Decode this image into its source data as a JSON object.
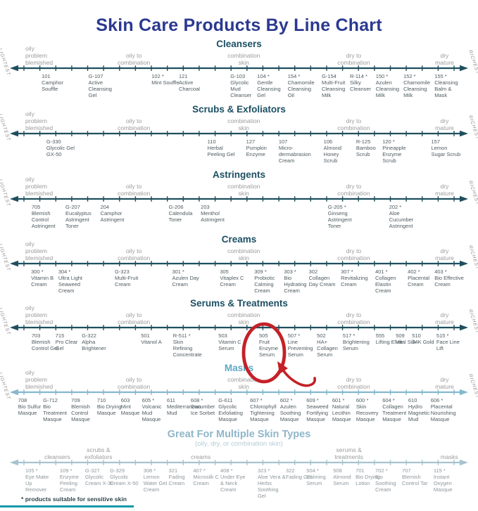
{
  "title": "Skin Care Products By Line Chart",
  "footnote": "* products suitable for sensitive skin",
  "axis": {
    "left": "LIGHTEST",
    "right": "RICHEST"
  },
  "skin_type_labels": [
    "oily\nproblem\nblemished",
    "oily to\ncombination",
    "combination\nskin",
    "dry to\ncombination",
    "dry\nmature"
  ],
  "annotation": {
    "highlighted_product": "505 Fruit Enzyme Serum"
  },
  "colors": {
    "title": "#2b3990",
    "section_title_dark": "#1c4f63",
    "section_title_light": "#5fa8c4",
    "section_title_muted": "#8fb6c9",
    "subtitle_muted": "#b3ccd7",
    "line_dark": "#1e4f5e",
    "line_light": "#85b8cd",
    "line_muted": "#a6c3cf",
    "label_gray": "#9b9b9b",
    "product_text": "#4e5b61",
    "product_text_muted": "#8d979d",
    "annotation_red": "#c42127",
    "footnote_text": "#31454e",
    "footnote_rule": "#0d99a9"
  },
  "chart_data": {
    "type": "scatter",
    "title": "Skin Care Products By Line Chart",
    "x_axis": {
      "left_end": "LIGHTEST",
      "right_end": "RICHEST",
      "categories": [
        "oily problem blemished",
        "oily to combination",
        "combination skin",
        "dry to combination",
        "dry mature"
      ],
      "range": [
        0,
        100
      ]
    },
    "lines": [
      {
        "label": "Cleansers",
        "style": "dark",
        "products": [
          {
            "code": "101",
            "star": false,
            "name": "Camphor Souffle",
            "x": 8.7
          },
          {
            "code": "G-107",
            "star": false,
            "name": "Active Cleansing Gel",
            "x": 18.5
          },
          {
            "code": "102",
            "star": true,
            "name": "Mint Souffle",
            "x": 31.7
          },
          {
            "code": "121",
            "star": false,
            "name": "Active Charcoal",
            "x": 37.4
          },
          {
            "code": "G-103",
            "star": false,
            "name": "Glycolic Mud Cleanser",
            "x": 48.2
          },
          {
            "code": "104",
            "star": true,
            "name": "Gentle Cleansing Gel",
            "x": 53.8
          },
          {
            "code": "154",
            "star": true,
            "name": "Chamomile Cleansing Oil",
            "x": 60.2
          },
          {
            "code": "G-154",
            "star": false,
            "name": "Multi-Fruit Cleansing Milk",
            "x": 67.3
          },
          {
            "code": "R-114",
            "star": true,
            "name": "Silky Cleanser",
            "x": 73.2
          },
          {
            "code": "150",
            "star": true,
            "name": "Azulen Cleansing Milk",
            "x": 78.6
          },
          {
            "code": "152",
            "star": true,
            "name": "Chamomile Cleansing Milk",
            "x": 84.4
          },
          {
            "code": "155",
            "star": true,
            "name": "Cleansing Balm & Mask",
            "x": 90.9
          }
        ]
      },
      {
        "label": "Scrubs & Exfoliators",
        "style": "dark",
        "products": [
          {
            "code": "G-330",
            "star": false,
            "name": "Glycolic Gel GX-50",
            "x": 9.7
          },
          {
            "code": "110",
            "star": false,
            "name": "Herbal Peeling Gel",
            "x": 43.4
          },
          {
            "code": "127",
            "star": false,
            "name": "Pumpkin Enzyme",
            "x": 51.5
          },
          {
            "code": "107",
            "star": false,
            "name": "Micro-dermabrasion Cream",
            "x": 58.3
          },
          {
            "code": "106",
            "star": false,
            "name": "Almond Honey Scrub",
            "x": 67.7
          },
          {
            "code": "R-125",
            "star": false,
            "name": "Bamboo Scrub",
            "x": 74.5
          },
          {
            "code": "120",
            "star": true,
            "name": "Pineapple Enzyme Scrub",
            "x": 80.0
          },
          {
            "code": "157",
            "star": false,
            "name": "Lemon Sugar Scrub",
            "x": 90.2
          }
        ]
      },
      {
        "label": "Astringents",
        "style": "dark",
        "products": [
          {
            "code": "705",
            "star": false,
            "name": "Blemish Control Astringent",
            "x": 6.6
          },
          {
            "code": "G-207",
            "star": false,
            "name": "Eucalyptus Astringent Toner",
            "x": 13.7
          },
          {
            "code": "204",
            "star": false,
            "name": "Camphor Astringent",
            "x": 21.0
          },
          {
            "code": "G-206",
            "star": false,
            "name": "Calendula Toner",
            "x": 35.3
          },
          {
            "code": "203",
            "star": false,
            "name": "Menthol Astringent",
            "x": 42.0
          },
          {
            "code": "G-205",
            "star": true,
            "name": "Ginseng Astringent Toner",
            "x": 68.6
          },
          {
            "code": "202",
            "star": true,
            "name": "Aloe Cucumber Astringent",
            "x": 81.4
          }
        ]
      },
      {
        "label": "Creams",
        "style": "dark",
        "products": [
          {
            "code": "300",
            "star": true,
            "name": "Vitamin B Cream",
            "x": 6.5
          },
          {
            "code": "304",
            "star": true,
            "name": "Ultra Light Seaweed Cream",
            "x": 12.2
          },
          {
            "code": "G-323",
            "star": false,
            "name": "Multi-Fruit Cream",
            "x": 24.0
          },
          {
            "code": "301",
            "star": true,
            "name": "Azulen Day Cream",
            "x": 36.0
          },
          {
            "code": "305",
            "star": false,
            "name": "Vitaplex C Cream",
            "x": 46.0
          },
          {
            "code": "309",
            "star": true,
            "name": "Probiotic Calming Cream",
            "x": 53.2
          },
          {
            "code": "303",
            "star": true,
            "name": "Bio Hydrating Cream",
            "x": 59.4
          },
          {
            "code": "302",
            "star": false,
            "name": "Collagen Day Cream",
            "x": 64.6
          },
          {
            "code": "307",
            "star": true,
            "name": "Revitalizing Cream",
            "x": 71.3
          },
          {
            "code": "401",
            "star": true,
            "name": "Collagen Elastin Cream",
            "x": 78.5
          },
          {
            "code": "402",
            "star": true,
            "name": "Placental Cream",
            "x": 85.3
          },
          {
            "code": "403",
            "star": true,
            "name": "Bio Effective Cream",
            "x": 90.9
          }
        ]
      },
      {
        "label": "Serums & Treatments",
        "style": "dark",
        "products": [
          {
            "code": "703",
            "star": false,
            "name": "Blemish Control Gel",
            "x": 6.6
          },
          {
            "code": "715",
            "star": false,
            "name": "Pro Clear Gel",
            "x": 11.6
          },
          {
            "code": "G-322",
            "star": false,
            "name": "Alpha Brightener",
            "x": 17.1
          },
          {
            "code": "501",
            "star": false,
            "name": "Vitanol A",
            "x": 29.5
          },
          {
            "code": "R-511",
            "star": true,
            "name": "Skin Refining Concentrate",
            "x": 36.2
          },
          {
            "code": "503",
            "star": false,
            "name": "Vitamin C Serum",
            "x": 45.7
          },
          {
            "code": "505",
            "star": false,
            "name": "Fruit Enzyme Serum",
            "x": 54.2
          },
          {
            "code": "507",
            "star": true,
            "name": "Line Preventing Serum",
            "x": 60.2
          },
          {
            "code": "502",
            "star": false,
            "name": "HA+ Collagen Serum",
            "x": 66.3
          },
          {
            "code": "517",
            "star": true,
            "name": "Brightening Serum",
            "x": 71.7
          },
          {
            "code": "555",
            "star": false,
            "name": "Lifting Elixir",
            "x": 78.6
          },
          {
            "code": "509",
            "star": false,
            "name": "Vital Silk",
            "x": 82.8
          },
          {
            "code": "510",
            "star": false,
            "name": "24K Gold",
            "x": 86.2
          },
          {
            "code": "515",
            "star": true,
            "name": "Face Line Lift",
            "x": 91.3
          }
        ]
      },
      {
        "label": "Masks",
        "style": "light",
        "products": [
          {
            "code": "708",
            "star": false,
            "name": "Bio Sulfur Masque",
            "x": 3.8
          },
          {
            "code": "G-712",
            "star": false,
            "name": "Bio Treatment Masque",
            "x": 9.0
          },
          {
            "code": "709",
            "star": false,
            "name": "Blemish Control Masque",
            "x": 14.9
          },
          {
            "code": "710",
            "star": false,
            "name": "Bio Drying Masque",
            "x": 20.3
          },
          {
            "code": "603",
            "star": false,
            "name": "Mint Masque",
            "x": 25.3
          },
          {
            "code": "605",
            "star": true,
            "name": "Volcanic Mud Masque",
            "x": 29.7
          },
          {
            "code": "611",
            "star": false,
            "name": "Mediterranean Mud",
            "x": 34.9
          },
          {
            "code": "608",
            "star": true,
            "name": "Cucumber Ice Sorbet",
            "x": 39.9
          },
          {
            "code": "G-611",
            "star": false,
            "name": "Glycolic Exfoliating Masque",
            "x": 45.7
          },
          {
            "code": "607",
            "star": true,
            "name": "Chlorophyll Tightening Masque",
            "x": 52.3
          },
          {
            "code": "602",
            "star": true,
            "name": "Azulen Soothing Masque",
            "x": 58.6
          },
          {
            "code": "609",
            "star": true,
            "name": "Seaweed Fortifying Masque",
            "x": 64.1
          },
          {
            "code": "601",
            "star": true,
            "name": "Natural Lecithin Masque",
            "x": 69.5
          },
          {
            "code": "600",
            "star": true,
            "name": "Skin Recovery Masque",
            "x": 74.5
          },
          {
            "code": "604",
            "star": true,
            "name": "Collagen Treatment Masque",
            "x": 80.0
          },
          {
            "code": "610",
            "star": false,
            "name": "Hydro Magnetic Mud",
            "x": 85.4
          },
          {
            "code": "606",
            "star": true,
            "name": "Placental Nourishing Masque",
            "x": 90.1
          }
        ]
      },
      {
        "label": "Great For Multiple Skin Types",
        "style": "muted",
        "subtitle": "(oily, dry, or combination skin)",
        "category_labels": [
          {
            "text": "cleansers",
            "x": 12
          },
          {
            "text": "scrubs &\nexfoliators",
            "x": 20.6
          },
          {
            "text": "creams",
            "x": 42
          },
          {
            "text": "serums &\ntreatments",
            "x": 73
          },
          {
            "text": "masks",
            "x": 94
          }
        ],
        "products": [
          {
            "code": "105",
            "star": true,
            "name": "Eye Make Up Remover",
            "x": 5.3
          },
          {
            "code": "109",
            "star": true,
            "name": "Enzyme Peeling Cream",
            "x": 12.5
          },
          {
            "code": "G-327",
            "star": false,
            "name": "Glycolic Cream X-30",
            "x": 17.8
          },
          {
            "code": "G-329",
            "star": false,
            "name": "Glycolic Cream X-50",
            "x": 23.0
          },
          {
            "code": "308",
            "star": true,
            "name": "Lemon Water Gel Cream",
            "x": 30.0
          },
          {
            "code": "321",
            "star": false,
            "name": "Fading Cream",
            "x": 35.3
          },
          {
            "code": "407",
            "star": true,
            "name": "Microsilk C Cream",
            "x": 40.4
          },
          {
            "code": "408",
            "star": true,
            "name": "Under Eye & Neck Cream",
            "x": 46.1
          },
          {
            "code": "323",
            "star": true,
            "name": "Aloe Vera & Herbs Soothing Gel",
            "x": 53.9
          },
          {
            "code": "322",
            "star": false,
            "name": "Fading Gel",
            "x": 59.8
          },
          {
            "code": "504",
            "star": true,
            "name": "Calming Serum",
            "x": 64.1
          },
          {
            "code": "508",
            "star": false,
            "name": "Almond Serum",
            "x": 69.7
          },
          {
            "code": "701",
            "star": false,
            "name": "Bio Drying Lotion",
            "x": 74.4
          },
          {
            "code": "702",
            "star": true,
            "name": "Bio Soothing Cream",
            "x": 78.5
          },
          {
            "code": "707",
            "star": false,
            "name": "Blemish Control Tar",
            "x": 84.1
          },
          {
            "code": "115",
            "star": true,
            "name": "Instant Oxygen Masque",
            "x": 90.7
          }
        ]
      }
    ]
  }
}
